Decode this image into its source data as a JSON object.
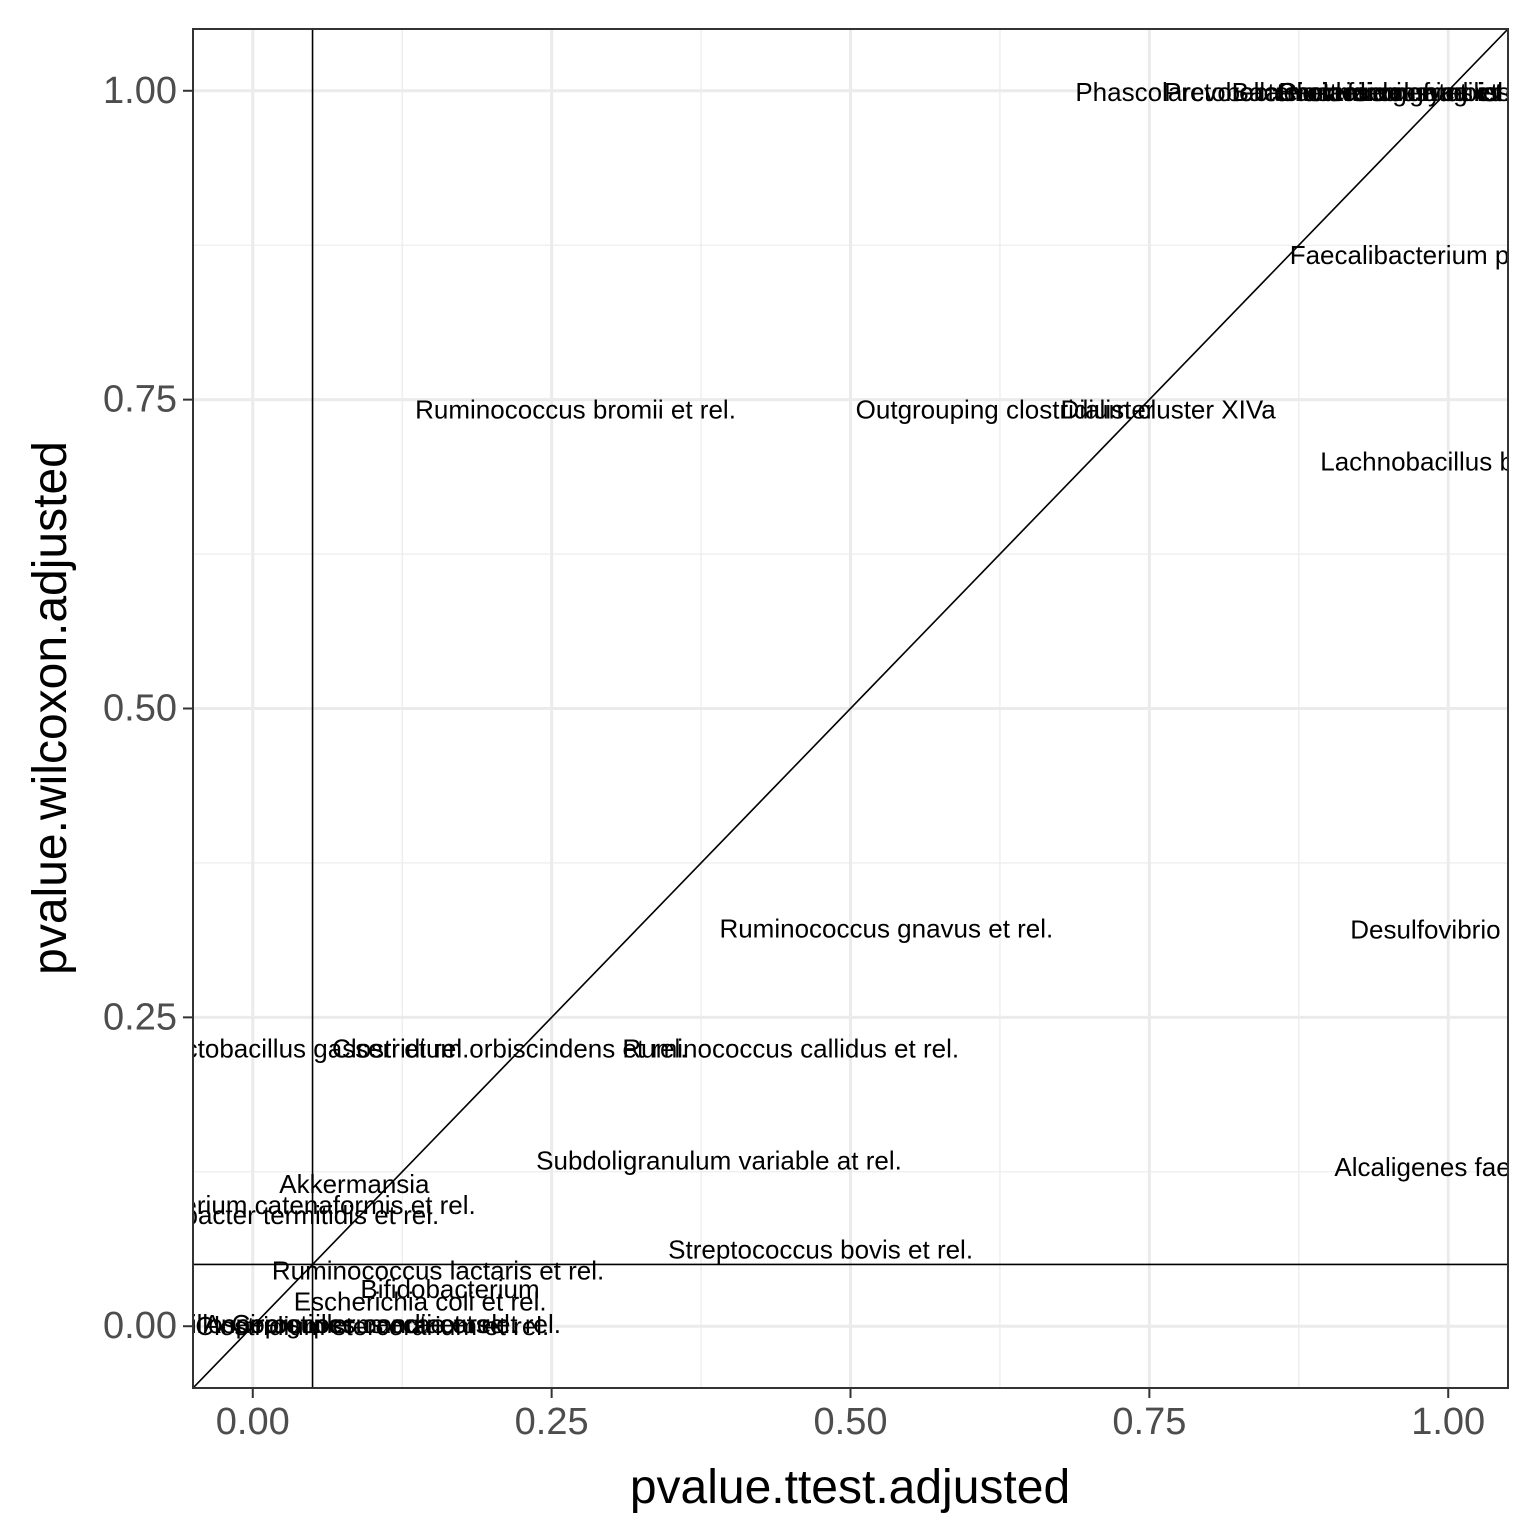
{
  "chart_data": {
    "type": "scatter",
    "title": "",
    "xlabel": "pvalue.ttest.adjusted",
    "ylabel": "pvalue.wilcoxon.adjusted",
    "xlim": [
      -0.05,
      1.05
    ],
    "ylim": [
      -0.05,
      1.05
    ],
    "x_ticks": [
      "0.00",
      "0.25",
      "0.50",
      "0.75",
      "1.00"
    ],
    "y_ticks": [
      "0.00",
      "0.25",
      "0.50",
      "0.75",
      "1.00"
    ],
    "x_tick_values": [
      0,
      0.25,
      0.5,
      0.75,
      1.0
    ],
    "y_tick_values": [
      0,
      0.25,
      0.5,
      0.75,
      1.0
    ],
    "grid": true,
    "reference_lines": {
      "diagonal": {
        "slope": 1,
        "intercept": 0
      },
      "vline_x": 0.05,
      "hline_y": 0.05
    },
    "points": [
      {
        "label": "Faecalibacterium prau",
        "x": 0.975,
        "y": 0.867
      },
      {
        "label": "Ruminococcus bromii et rel.",
        "x": 0.27,
        "y": 0.742
      },
      {
        "label": "Outgrouping clostridium cluster XIVa",
        "x": 0.68,
        "y": 0.742
      },
      {
        "label": "Dialister",
        "x": 0.715,
        "y": 0.742
      },
      {
        "label": "Lachnobacillus bo",
        "x": 0.98,
        "y": 0.7
      },
      {
        "label": "Ruminococcus gnavus et rel.",
        "x": 0.53,
        "y": 0.322
      },
      {
        "label": "Desulfovibrio e",
        "x": 0.99,
        "y": 0.321
      },
      {
        "label": "Lactobacillus gasseri et rel.",
        "x": 0.05,
        "y": 0.225
      },
      {
        "label": "Clostridium orbiscindens et rel.",
        "x": 0.215,
        "y": 0.225
      },
      {
        "label": "Ruminococcus callidus et rel.",
        "x": 0.45,
        "y": 0.225
      },
      {
        "label": "Subdoligranulum variable at rel.",
        "x": 0.39,
        "y": 0.134
      },
      {
        "label": "Alcaligenes faeca",
        "x": 0.99,
        "y": 0.129
      },
      {
        "label": "Akkermansia",
        "x": 0.085,
        "y": 0.115
      },
      {
        "label": "Eubacterium catenaformis et rel.",
        "x": 0.03,
        "y": 0.098
      },
      {
        "label": "Sporobacter termitidis et rel.",
        "x": 0.02,
        "y": 0.09
      },
      {
        "label": "Streptococcus bovis et rel.",
        "x": 0.475,
        "y": 0.062
      },
      {
        "label": "Ruminococcus lactaris et rel.",
        "x": 0.155,
        "y": 0.045
      },
      {
        "label": "Bifidobacterium",
        "x": 0.165,
        "y": 0.03
      },
      {
        "label": "Escherichia coli et rel.",
        "x": 0.14,
        "y": 0.02
      },
      {
        "label": "Phascolarctobacterium faecium et rel.",
        "x": 0.87,
        "y": 0.999
      },
      {
        "label": "Prevotella melaninogenica et rel.",
        "x": 0.92,
        "y": 0.999
      },
      {
        "label": "Bacteroides vulgatus et rel.",
        "x": 0.95,
        "y": 0.999
      },
      {
        "label": "Bacteroides fragilis et rel.",
        "x": 0.98,
        "y": 0.999
      },
      {
        "label": "Clostridium symbiosum et rel.",
        "x": 1.0,
        "y": 0.999
      },
      {
        "label": "Oscillospira guillermondii et rel.",
        "x": 0.06,
        "y": 0.002
      },
      {
        "label": "Anaerostipes caccae et rel.",
        "x": 0.09,
        "y": 0.002
      },
      {
        "label": "Coprococcus eutactus et rel.",
        "x": 0.12,
        "y": 0.002
      },
      {
        "label": "Clostridium stercorarium et rel.",
        "x": 0.1,
        "y": 0.0
      }
    ]
  }
}
